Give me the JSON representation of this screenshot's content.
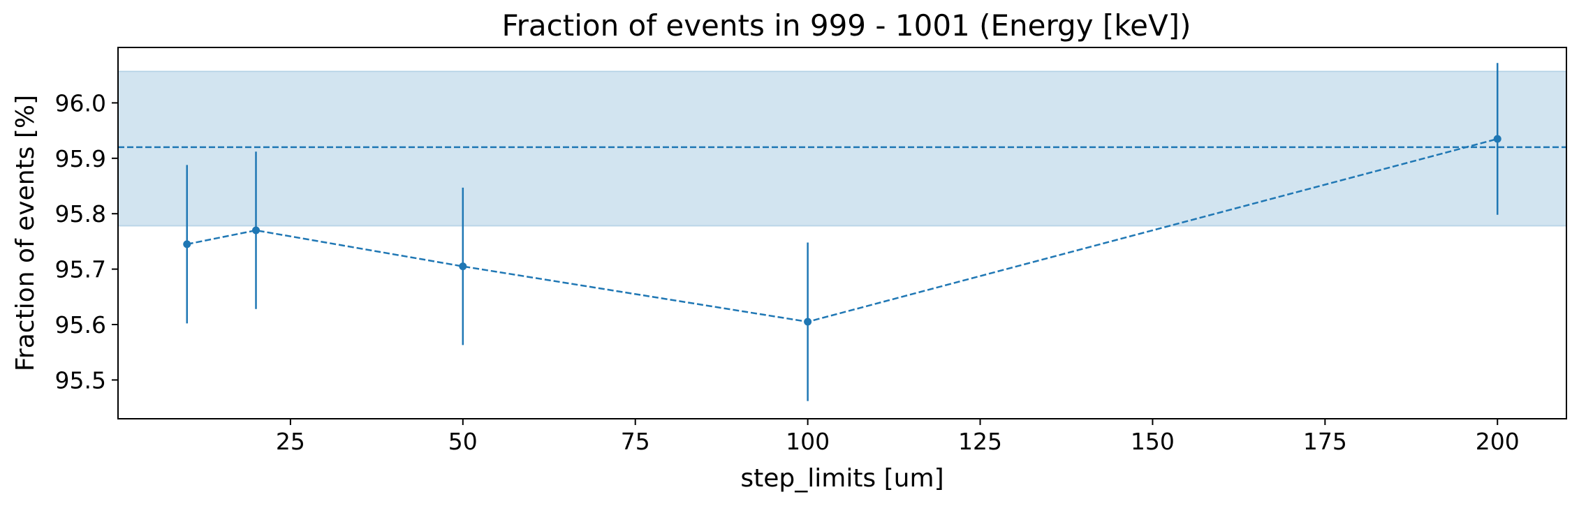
{
  "chart_data": {
    "type": "scatter",
    "title": "Fraction of events in 999 - 1001 (Energy [keV])",
    "xlabel": "step_limits [um]",
    "ylabel": "Fraction of events [%]",
    "xlim": [
      0,
      210
    ],
    "ylim": [
      95.43,
      96.1
    ],
    "x_ticks": [
      25,
      50,
      75,
      100,
      125,
      150,
      175,
      200
    ],
    "y_ticks": [
      95.5,
      95.6,
      95.7,
      95.8,
      95.9,
      96.0
    ],
    "x_tick_labels": [
      "25",
      "50",
      "75",
      "100",
      "125",
      "150",
      "175",
      "200"
    ],
    "y_tick_labels": [
      "95.5",
      "95.6",
      "95.7",
      "95.8",
      "95.9",
      "96.0"
    ],
    "grid": false,
    "color": "#1f77b4",
    "series": [
      {
        "x": [
          10,
          20,
          50,
          100,
          200
        ],
        "y": [
          95.745,
          95.77,
          95.705,
          95.605,
          95.935
        ],
        "yerr": [
          0.143,
          0.142,
          0.142,
          0.143,
          0.137
        ],
        "line_style": "dashed"
      }
    ],
    "reference_line": {
      "y": 95.92,
      "line_style": "dashed"
    },
    "reference_band": {
      "y_low": 95.778,
      "y_high": 96.057
    }
  }
}
